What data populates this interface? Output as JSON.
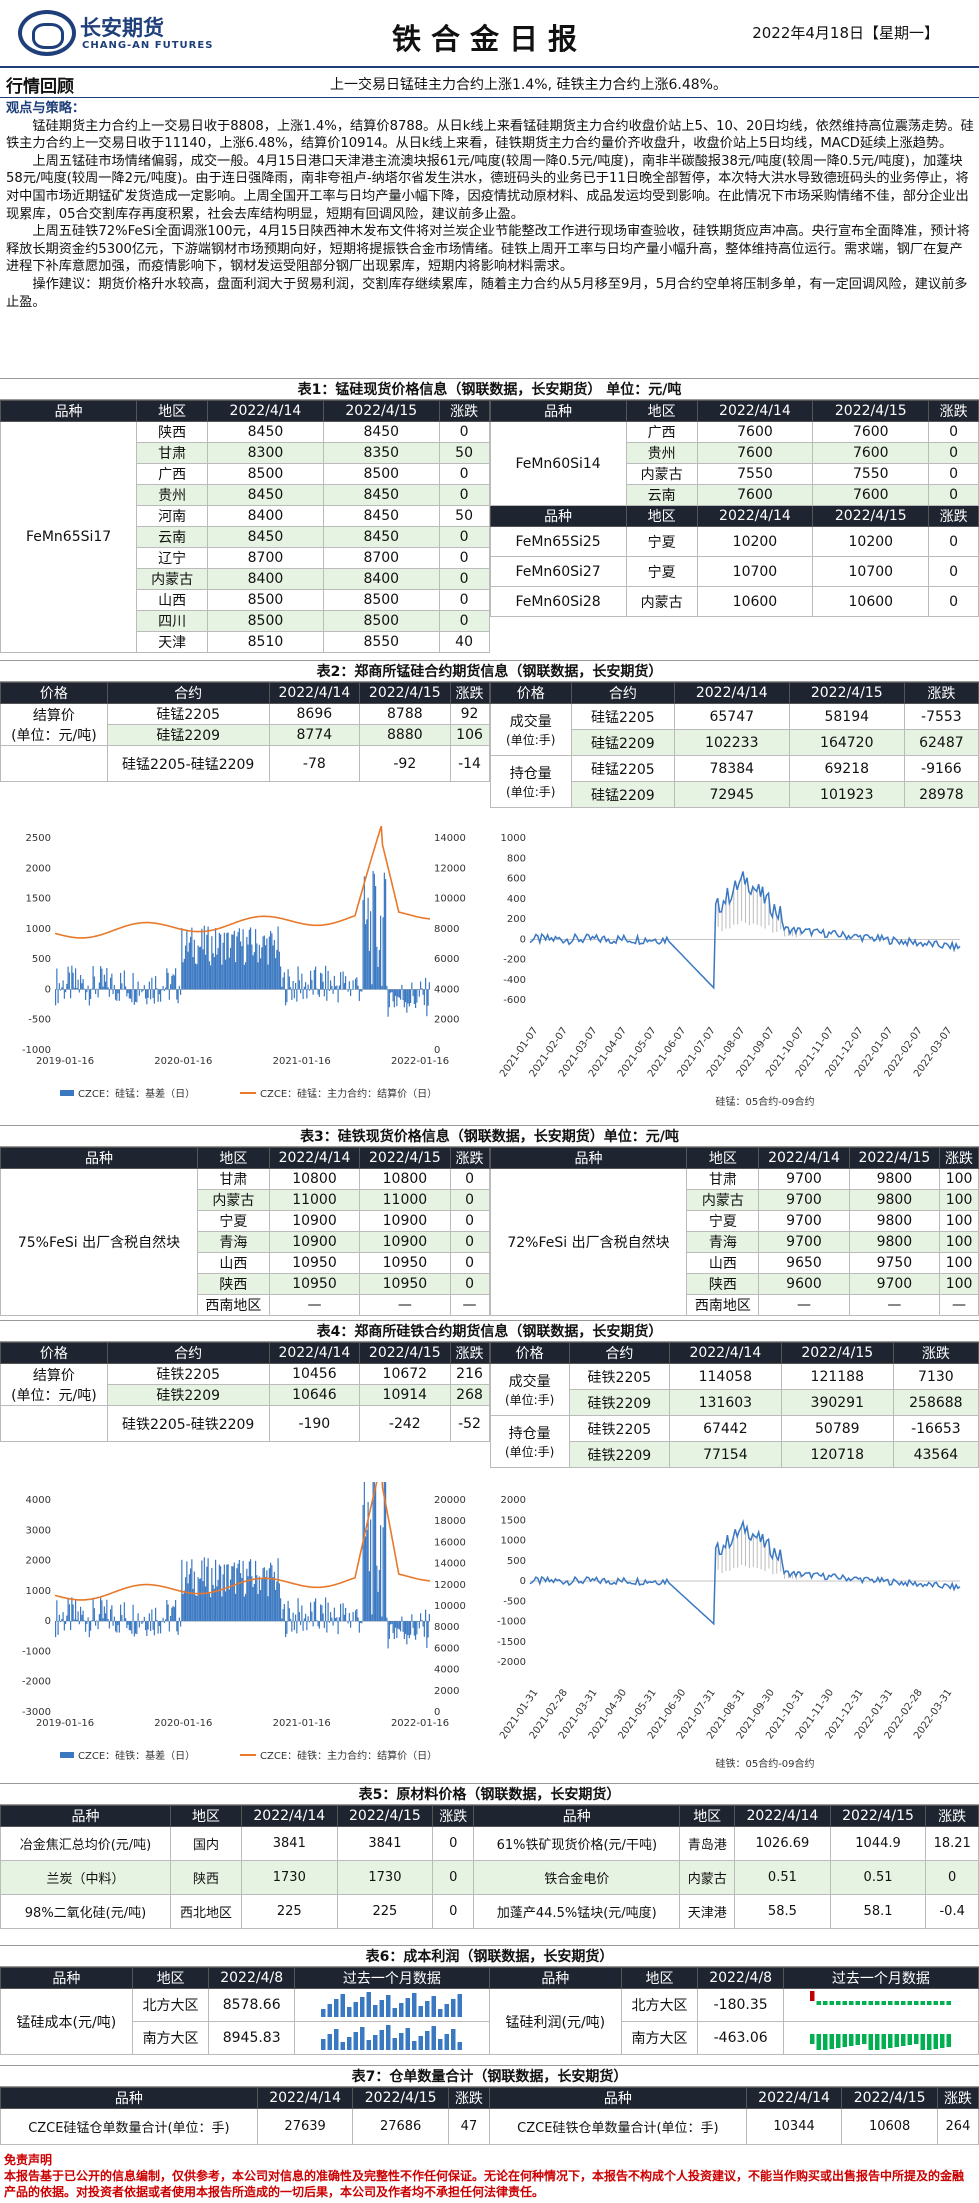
{
  "header": {
    "logo_cn": "长安期货",
    "logo_en": "CHANG-AN FUTURES",
    "title": "铁合金日报",
    "date": "2022年4月18日【星期一】"
  },
  "summary": {
    "label": "行情回顾",
    "text": "上一交易日锰硅主力合约上涨1.4%, 硅铁主力合约上涨6.48%。"
  },
  "strategy": {
    "heading": "观点与策略：",
    "p1": "锰硅期货主力合约上一交易日收于8808，上涨1.4%，结算价8788。从日k线上来看锰硅期货主力合约收盘价站上5、10、20日均线，依然维持高位震荡走势。硅铁主力合约上一交易日收于11140，上涨6.48%，结算价10914。从日k线上来看，硅铁期货主力合约量价齐收盘升，收盘价站上5日均线，MACD延续上涨趋势。",
    "p2": "上周五锰硅市场情绪偏弱，成交一般。4月15日港口天津港主流澳块报61元/吨度(较周一降0.5元/吨度)，南非半碳酸报38元/吨度(较周一降0.5元/吨度)，加蓬块58元/吨度(较周一降2元/吨度)。由于连日强降雨，南非夸祖卢-纳塔尔省发生洪水，德班码头的业务已于11日晚全部暂停，本次特大洪水导致德班码头的业务停止，将对中国市场近期锰矿发货造成一定影响。上周全国开工率与日均产量小幅下降，因疫情扰动原材料、成品发运均受到影响。在此情况下市场采购情绪不佳，部分企业出现累库，05合交割库存再度积累，社会去库结构明显，短期有回调风险，建议前多止盈。",
    "p3": "上周五硅铁72%FeSi全面调涨100元，4月15日陕西神木发布文件将对兰炭企业节能整改工作进行现场审查验收，硅铁期货应声冲高。央行宣布全面降准，预计将释放长期资金约5300亿元，下游端钢材市场预期向好，短期将提振铁合金市场情绪。硅铁上周开工率与日均产量小幅升高，整体维持高位运行。需求端，钢厂在复产进程下补库意愿加强，而疫情影响下，钢材发运受阻部分钢厂出现累库，短期内将影响材料需求。",
    "p4": "操作建议：期货价格升水较高，盘面利润大于贸易利润，交割库存继续累库，随着主力合约从5月移至9月，5月合约空单将压制多单，有一定回调风险，建议前多止盈。"
  },
  "t1": {
    "title": "表1：锰硅现货价格信息（钢联数据，长安期货） 单位：元/吨",
    "cols": [
      "品种",
      "地区",
      "2022/4/14",
      "2022/4/15",
      "涨跌"
    ],
    "left_name": "FeMn65Si17",
    "left": [
      [
        "陕西",
        "8450",
        "8450",
        "0"
      ],
      [
        "甘肃",
        "8300",
        "8350",
        "50"
      ],
      [
        "广西",
        "8500",
        "8500",
        "0"
      ],
      [
        "贵州",
        "8450",
        "8450",
        "0"
      ],
      [
        "河南",
        "8400",
        "8450",
        "50"
      ],
      [
        "云南",
        "8450",
        "8450",
        "0"
      ],
      [
        "辽宁",
        "8700",
        "8700",
        "0"
      ],
      [
        "内蒙古",
        "8400",
        "8400",
        "0"
      ],
      [
        "山西",
        "8500",
        "8500",
        "0"
      ],
      [
        "四川",
        "8500",
        "8500",
        "0"
      ],
      [
        "天津",
        "8510",
        "8550",
        "40"
      ]
    ],
    "r1name": "FeMn60Si14",
    "r1": [
      [
        "广西",
        "7600",
        "7600",
        "0"
      ],
      [
        "贵州",
        "7600",
        "7600",
        "0"
      ],
      [
        "内蒙古",
        "7550",
        "7550",
        "0"
      ],
      [
        "云南",
        "7600",
        "7600",
        "0"
      ]
    ],
    "r2": [
      [
        "FeMn65Si25",
        "宁夏",
        "10200",
        "10200",
        "0"
      ],
      [
        "FeMn60Si27",
        "宁夏",
        "10700",
        "10700",
        "0"
      ],
      [
        "FeMn60Si28",
        "内蒙古",
        "10600",
        "10600",
        "0"
      ]
    ]
  },
  "t2": {
    "title": "表2：郑商所锰硅合约期货信息（钢联数据，长安期货）",
    "cols": [
      "价格",
      "合约",
      "2022/4/14",
      "2022/4/15",
      "涨跌"
    ],
    "label": "结算价",
    "unit": "(单位：元/吨)",
    "rows": [
      [
        "硅锰2205",
        "8696",
        "8788",
        "92"
      ],
      [
        "硅锰2209",
        "8774",
        "8880",
        "106"
      ],
      [
        "硅锰2205-硅锰2209",
        "-78",
        "-92",
        "-14"
      ]
    ],
    "vol_label": "成交量",
    "vol_unit": "(单位:手)",
    "oi_label": "持仓量",
    "oi_unit": "(单位:手)",
    "vol": [
      [
        "硅锰2205",
        "65747",
        "58194",
        "-7553"
      ],
      [
        "硅锰2209",
        "102233",
        "164720",
        "62487"
      ]
    ],
    "oi": [
      [
        "硅锰2205",
        "78384",
        "69218",
        "-9166"
      ],
      [
        "硅锰2209",
        "72945",
        "101923",
        "28978"
      ]
    ]
  },
  "c1": {
    "legend_a": "CZCE：硅锰：基差（日）",
    "legend_b": "CZCE：硅锰：主力合约：结算价（日）",
    "xticks": [
      "2019-01-16",
      "2020-01-16",
      "2021-01-16",
      "2022-01-16"
    ],
    "yl": [
      "2500",
      "2000",
      "1500",
      "1000",
      "500",
      "0",
      "-500",
      "-1000"
    ],
    "yr": [
      "14000",
      "12000",
      "10000",
      "8000",
      "6000",
      "4000",
      "2000",
      "0"
    ]
  },
  "c2": {
    "caption": "硅锰：05合约-09合约",
    "yl": [
      "1000",
      "800",
      "600",
      "400",
      "200",
      "0",
      "-200",
      "-400",
      "-600"
    ],
    "xticks": [
      "2021-01-07",
      "2021-02-07",
      "2021-03-07",
      "2021-04-07",
      "2021-05-07",
      "2021-06-07",
      "2021-07-07",
      "2021-08-07",
      "2021-09-07",
      "2021-10-07",
      "2021-11-07",
      "2021-12-07",
      "2022-01-07",
      "2022-02-07",
      "2022-03-07"
    ]
  },
  "t3": {
    "title": "表3：硅铁现货价格信息（钢联数据，长安期货）单位：元/吨",
    "cols": [
      "品种",
      "地区",
      "2022/4/14",
      "2022/4/15",
      "涨跌"
    ],
    "lname": "75%FeSi 出厂含税自然块",
    "rname": "72%FeSi 出厂含税自然块",
    "left": [
      [
        "甘肃",
        "10800",
        "10800",
        "0"
      ],
      [
        "内蒙古",
        "11000",
        "11000",
        "0"
      ],
      [
        "宁夏",
        "10900",
        "10900",
        "0"
      ],
      [
        "青海",
        "10900",
        "10900",
        "0"
      ],
      [
        "山西",
        "10950",
        "10950",
        "0"
      ],
      [
        "陕西",
        "10950",
        "10950",
        "0"
      ],
      [
        "西南地区",
        "—",
        "—",
        "—"
      ]
    ],
    "right": [
      [
        "甘肃",
        "9700",
        "9800",
        "100"
      ],
      [
        "内蒙古",
        "9700",
        "9800",
        "100"
      ],
      [
        "宁夏",
        "9700",
        "9800",
        "100"
      ],
      [
        "青海",
        "9700",
        "9800",
        "100"
      ],
      [
        "山西",
        "9650",
        "9750",
        "100"
      ],
      [
        "陕西",
        "9600",
        "9700",
        "100"
      ],
      [
        "西南地区",
        "—",
        "—",
        "—"
      ]
    ]
  },
  "t4": {
    "title": "表4：郑商所硅铁合约期货信息（钢联数据，长安期货）",
    "cols": [
      "价格",
      "合约",
      "2022/4/14",
      "2022/4/15",
      "涨跌"
    ],
    "label": "结算价",
    "unit": "(单位：元/吨)",
    "rows": [
      [
        "硅铁2205",
        "10456",
        "10672",
        "216"
      ],
      [
        "硅铁2209",
        "10646",
        "10914",
        "268"
      ],
      [
        "硅铁2205-硅铁2209",
        "-190",
        "-242",
        "-52"
      ]
    ],
    "vol_label": "成交量",
    "vol_unit": "(单位:手)",
    "oi_label": "持仓量",
    "oi_unit": "(单位:手)",
    "vol": [
      [
        "硅铁2205",
        "114058",
        "121188",
        "7130"
      ],
      [
        "硅铁2209",
        "131603",
        "390291",
        "258688"
      ]
    ],
    "oi": [
      [
        "硅铁2205",
        "67442",
        "50789",
        "-16653"
      ],
      [
        "硅铁2209",
        "77154",
        "120718",
        "43564"
      ]
    ]
  },
  "c3": {
    "legend_a": "CZCE：硅铁：基差（日）",
    "legend_b": "CZCE：硅铁：主力合约：结算价（日）",
    "xticks": [
      "2019-01-16",
      "2020-01-16",
      "2021-01-16",
      "2022-01-16"
    ],
    "yl": [
      "4000",
      "3000",
      "2000",
      "1000",
      "0",
      "-1000",
      "-2000",
      "-3000"
    ],
    "yr": [
      "20000",
      "18000",
      "16000",
      "14000",
      "12000",
      "10000",
      "8000",
      "6000",
      "4000",
      "2000",
      "0"
    ]
  },
  "c4": {
    "caption": "硅铁：05合约-09合约",
    "yl": [
      "2000",
      "1500",
      "1000",
      "500",
      "0",
      "-500",
      "-1000",
      "-1500",
      "-2000"
    ],
    "xticks": [
      "2021-01-31",
      "2021-02-28",
      "2021-03-31",
      "2021-04-30",
      "2021-05-31",
      "2021-06-30",
      "2021-07-31",
      "2021-08-31",
      "2021-09-30",
      "2021-10-31",
      "2021-11-30",
      "2021-12-31",
      "2022-01-31",
      "2022-02-28",
      "2022-03-31"
    ]
  },
  "t5": {
    "title": "表5：原材料价格（钢联数据，长安期货）",
    "cols": [
      "品种",
      "地区",
      "2022/4/14",
      "2022/4/15",
      "涨跌",
      "品种",
      "地区",
      "2022/4/14",
      "2022/4/15",
      "涨跌"
    ],
    "rows": [
      [
        "冶金焦汇总均价(元/吨)",
        "国内",
        "3841",
        "3841",
        "0",
        "61%铁矿现货价格(元/干吨)",
        "青岛港",
        "1026.69",
        "1044.9",
        "18.21"
      ],
      [
        "兰炭（中料）",
        "陕西",
        "1730",
        "1730",
        "0",
        "铁合金电价",
        "内蒙古",
        "0.51",
        "0.51",
        "0"
      ],
      [
        "98%二氧化硅(元/吨)",
        "西北地区",
        "225",
        "225",
        "0",
        "加蓬产44.5%锰块(元/吨度)",
        "天津港",
        "58.5",
        "58.1",
        "-0.4"
      ]
    ]
  },
  "t6": {
    "title": "表6：成本利润（钢联数据，长安期货）",
    "cols": [
      "品种",
      "地区",
      "2022/4/8",
      "过去一个月数据",
      "品种",
      "地区",
      "2022/4/8",
      "过去一个月数据"
    ],
    "lname": "锰硅成本(元/吨)",
    "rname": "锰硅利润(元/吨)",
    "rows": [
      [
        "北方大区",
        "8578.66",
        "北方大区",
        "-180.35"
      ],
      [
        "南方大区",
        "8945.83",
        "南方大区",
        "-463.06"
      ]
    ]
  },
  "t7": {
    "title": "表7：仓单数量合计（钢联数据，长安期货）",
    "cols": [
      "品种",
      "2022/4/14",
      "2022/4/15",
      "涨跌",
      "品种",
      "2022/4/14",
      "2022/4/15",
      "涨跌"
    ],
    "row": [
      "CZCE硅锰仓单数量合计(单位：手)",
      "27639",
      "27686",
      "47",
      "CZCE硅铁仓单数量合计(单位：手)",
      "10344",
      "10608",
      "264"
    ]
  },
  "footer": {
    "title": "免责声明",
    "text": "本报告基于已公开的信息编制，仅供参考，本公司对信息的准确性及完整性不作任何保证。无论在何种情况下，本报告不构成个人投资建议，不能当作购买或出售报告中所提及的金融产品的依据。对投资者依据或者使用本报告所造成的一切后果，本公司及作者均不承担任何法律责任。"
  },
  "colors": {
    "blue": "#3a78c2",
    "orange": "#e8792a",
    "green": "#00b050",
    "red": "#c00000",
    "dark": "#1e2430"
  }
}
